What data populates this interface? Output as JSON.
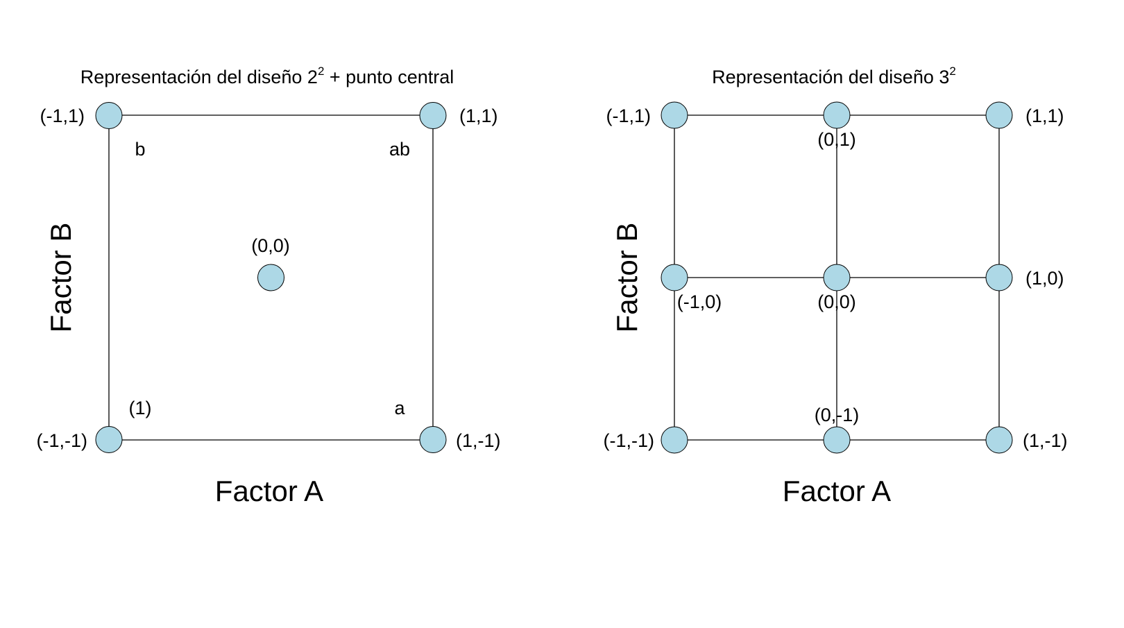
{
  "colors": {
    "node_fill": "#add8e6",
    "node_stroke": "#000000",
    "edge": "#000000",
    "background": "#ffffff"
  },
  "left": {
    "title_main": "Representación del diseño 2",
    "title_sup": "2",
    "title_rest": " + punto central",
    "xlabel": "Factor A",
    "ylabel": "Factor B",
    "points": [
      {
        "id": "tl",
        "x": -1,
        "y": 1,
        "coord": "(-1,1)",
        "treatment": "b"
      },
      {
        "id": "tr",
        "x": 1,
        "y": 1,
        "coord": "(1,1)",
        "treatment": "ab"
      },
      {
        "id": "bl",
        "x": -1,
        "y": -1,
        "coord": "(-1,-1)",
        "treatment": "(1)"
      },
      {
        "id": "br",
        "x": 1,
        "y": -1,
        "coord": "(1,-1)",
        "treatment": "a"
      },
      {
        "id": "c",
        "x": 0,
        "y": 0,
        "coord": "(0,0)",
        "treatment": ""
      }
    ]
  },
  "right": {
    "title_main": "Representación del diseño 3",
    "title_sup": "2",
    "xlabel": "Factor A",
    "ylabel": "Factor B",
    "points": [
      {
        "id": "tl",
        "x": -1,
        "y": 1,
        "coord": "(-1,1)"
      },
      {
        "id": "tm",
        "x": 0,
        "y": 1,
        "coord": "(0,1)"
      },
      {
        "id": "tr",
        "x": 1,
        "y": 1,
        "coord": "(1,1)"
      },
      {
        "id": "ml",
        "x": -1,
        "y": 0,
        "coord": "(-1,0)"
      },
      {
        "id": "mm",
        "x": 0,
        "y": 0,
        "coord": "(0,0)"
      },
      {
        "id": "mr",
        "x": 1,
        "y": 0,
        "coord": "(1,0)"
      },
      {
        "id": "bl",
        "x": -1,
        "y": -1,
        "coord": "(-1,-1)"
      },
      {
        "id": "bm",
        "x": 0,
        "y": -1,
        "coord": "(0,-1)"
      },
      {
        "id": "br",
        "x": 1,
        "y": -1,
        "coord": "(1,-1)"
      }
    ]
  }
}
